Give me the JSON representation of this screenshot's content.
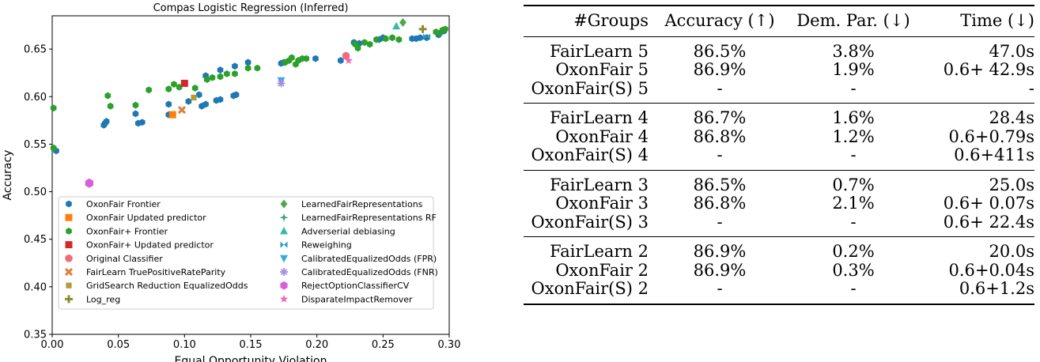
{
  "chart_data": {
    "type": "scatter",
    "title": "Compas Logistic Regression (Inferred)",
    "xlabel": "Equal Opportunity Violation",
    "ylabel": "Accuracy",
    "xlim": [
      0.0,
      0.3
    ],
    "ylim": [
      0.35,
      0.685
    ],
    "xticks": [
      "0.00",
      "0.05",
      "0.10",
      "0.15",
      "0.20",
      "0.25",
      "0.30"
    ],
    "yticks": [
      "0.35",
      "0.40",
      "0.45",
      "0.50",
      "0.55",
      "0.60",
      "0.65"
    ],
    "grid": false,
    "legend_position": "lower-center",
    "series": [
      {
        "name": "OxonFair Frontier",
        "color": "#1f77b4",
        "marker": "hexagon",
        "points": [
          [
            0.003,
            0.543
          ],
          [
            0.039,
            0.57
          ],
          [
            0.04,
            0.572
          ],
          [
            0.041,
            0.574
          ],
          [
            0.063,
            0.582
          ],
          [
            0.065,
            0.572
          ],
          [
            0.068,
            0.573
          ],
          [
            0.088,
            0.581
          ],
          [
            0.088,
            0.592
          ],
          [
            0.103,
            0.595
          ],
          [
            0.111,
            0.602
          ],
          [
            0.113,
            0.59
          ],
          [
            0.116,
            0.592
          ],
          [
            0.124,
            0.596
          ],
          [
            0.127,
            0.597
          ],
          [
            0.137,
            0.601
          ],
          [
            0.139,
            0.602
          ],
          [
            0.116,
            0.622
          ],
          [
            0.127,
            0.628
          ],
          [
            0.138,
            0.632
          ],
          [
            0.148,
            0.636
          ],
          [
            0.173,
            0.635
          ],
          [
            0.175,
            0.636
          ],
          [
            0.199,
            0.64
          ],
          [
            0.218,
            0.638
          ],
          [
            0.228,
            0.657
          ],
          [
            0.232,
            0.656
          ],
          [
            0.247,
            0.66
          ],
          [
            0.25,
            0.662
          ],
          [
            0.272,
            0.661
          ],
          [
            0.275,
            0.661
          ],
          [
            0.278,
            0.662
          ],
          [
            0.283,
            0.662
          ],
          [
            0.292,
            0.665
          ],
          [
            0.296,
            0.669
          ]
        ]
      },
      {
        "name": "OxonFair Updated predictor",
        "color": "#ff7f0e",
        "marker": "square",
        "points": [
          [
            0.091,
            0.581
          ]
        ]
      },
      {
        "name": "OxonFair+ Frontier",
        "color": "#2ca02c",
        "marker": "hexagon",
        "points": [
          [
            0.001,
            0.588
          ],
          [
            0.001,
            0.546
          ],
          [
            0.042,
            0.601
          ],
          [
            0.044,
            0.59
          ],
          [
            0.063,
            0.591
          ],
          [
            0.073,
            0.607
          ],
          [
            0.088,
            0.608
          ],
          [
            0.092,
            0.613
          ],
          [
            0.096,
            0.61
          ],
          [
            0.108,
            0.609
          ],
          [
            0.117,
            0.618
          ],
          [
            0.121,
            0.62
          ],
          [
            0.127,
            0.621
          ],
          [
            0.132,
            0.624
          ],
          [
            0.138,
            0.624
          ],
          [
            0.148,
            0.63
          ],
          [
            0.155,
            0.63
          ],
          [
            0.176,
            0.636
          ],
          [
            0.179,
            0.638
          ],
          [
            0.181,
            0.641
          ],
          [
            0.184,
            0.634
          ],
          [
            0.186,
            0.638
          ],
          [
            0.189,
            0.64
          ],
          [
            0.192,
            0.64
          ],
          [
            0.229,
            0.655
          ],
          [
            0.231,
            0.651
          ],
          [
            0.236,
            0.657
          ],
          [
            0.24,
            0.655
          ],
          [
            0.245,
            0.66
          ],
          [
            0.252,
            0.661
          ],
          [
            0.257,
            0.662
          ],
          [
            0.262,
            0.66
          ],
          [
            0.29,
            0.668
          ],
          [
            0.293,
            0.667
          ],
          [
            0.295,
            0.67
          ],
          [
            0.297,
            0.671
          ]
        ]
      },
      {
        "name": "OxonFair+ Updated predictor",
        "color": "#d62728",
        "marker": "square",
        "points": [
          [
            0.1,
            0.614
          ]
        ]
      },
      {
        "name": "Original Classifier",
        "color": "#f06c7c",
        "marker": "circle",
        "points": [
          [
            0.222,
            0.643
          ]
        ]
      },
      {
        "name": "FairLearn TruePositiveRateParity",
        "color": "#e07b39",
        "marker": "x",
        "points": [
          [
            0.098,
            0.586
          ]
        ]
      },
      {
        "name": "GridSearch Reduction EqualizedOdds",
        "color": "#b39a3a",
        "marker": "square-small",
        "points": [
          [
            0.107,
            0.599
          ]
        ]
      },
      {
        "name": "Log_reg",
        "color": "#8c8c2e",
        "marker": "plus",
        "points": [
          [
            0.28,
            0.671
          ]
        ]
      },
      {
        "name": "LearnedFairRepresentations",
        "color": "#4fa84f",
        "marker": "diamond",
        "points": [
          [
            0.265,
            0.678
          ]
        ]
      },
      {
        "name": "LearnedFairRepresentations RF",
        "color": "#3aa37a",
        "marker": "star4",
        "points": []
      },
      {
        "name": "Adverserial debiasing",
        "color": "#3ab8a8",
        "marker": "triangle-up",
        "points": [
          [
            0.26,
            0.674
          ]
        ]
      },
      {
        "name": "Reweighing",
        "color": "#2a9fc0",
        "marker": "bowtie",
        "points": [
          [
            0.283,
            0.663
          ]
        ]
      },
      {
        "name": "CalibratedEqualizedOdds (FPR)",
        "color": "#3aa9e0",
        "marker": "triangle-down",
        "points": [
          [
            0.173,
            0.617
          ]
        ]
      },
      {
        "name": "CalibratedEqualizedOdds (FNR)",
        "color": "#a98fe0",
        "marker": "asterisk",
        "points": [
          [
            0.173,
            0.614
          ]
        ]
      },
      {
        "name": "RejectOptionClassifierCV",
        "color": "#d95fd9",
        "marker": "hexagon",
        "points": [
          [
            0.028,
            0.509
          ]
        ]
      },
      {
        "name": "DisparateImpactRemover",
        "color": "#f06ab0",
        "marker": "star",
        "points": [
          [
            0.224,
            0.638
          ]
        ]
      }
    ]
  },
  "table": {
    "headers": [
      "#Groups",
      "Accuracy (↑)",
      "Dem. Par. (↓)",
      "Time (↓)"
    ],
    "groups": [
      [
        [
          "FairLearn 5",
          "86.5%",
          "3.8%",
          "47.0s"
        ],
        [
          "OxonFair 5",
          "86.9%",
          "1.9%",
          "0.6+ 42.9s"
        ],
        [
          "OxonFair(S) 5",
          "-",
          "-",
          "-"
        ]
      ],
      [
        [
          "FairLearn 4",
          "86.7%",
          "1.6%",
          "28.4s"
        ],
        [
          "OxonFair 4",
          "86.8%",
          "1.2%",
          "0.6+0.79s"
        ],
        [
          "OxonFair(S) 4",
          "-",
          "-",
          "0.6+411s"
        ]
      ],
      [
        [
          "FairLearn 3",
          "86.5%",
          "0.7%",
          "25.0s"
        ],
        [
          "OxonFair 3",
          "86.8%",
          "2.1%",
          "0.6+ 0.07s"
        ],
        [
          "OxonFair(S) 3",
          "-",
          "-",
          "0.6+ 22.4s"
        ]
      ],
      [
        [
          "FairLearn 2",
          "86.9%",
          "0.2%",
          "20.0s"
        ],
        [
          "OxonFair 2",
          "86.9%",
          "0.3%",
          "0.6+0.04s"
        ],
        [
          "OxonFair(S) 2",
          "-",
          "-",
          "0.6+1.2s"
        ]
      ]
    ]
  }
}
